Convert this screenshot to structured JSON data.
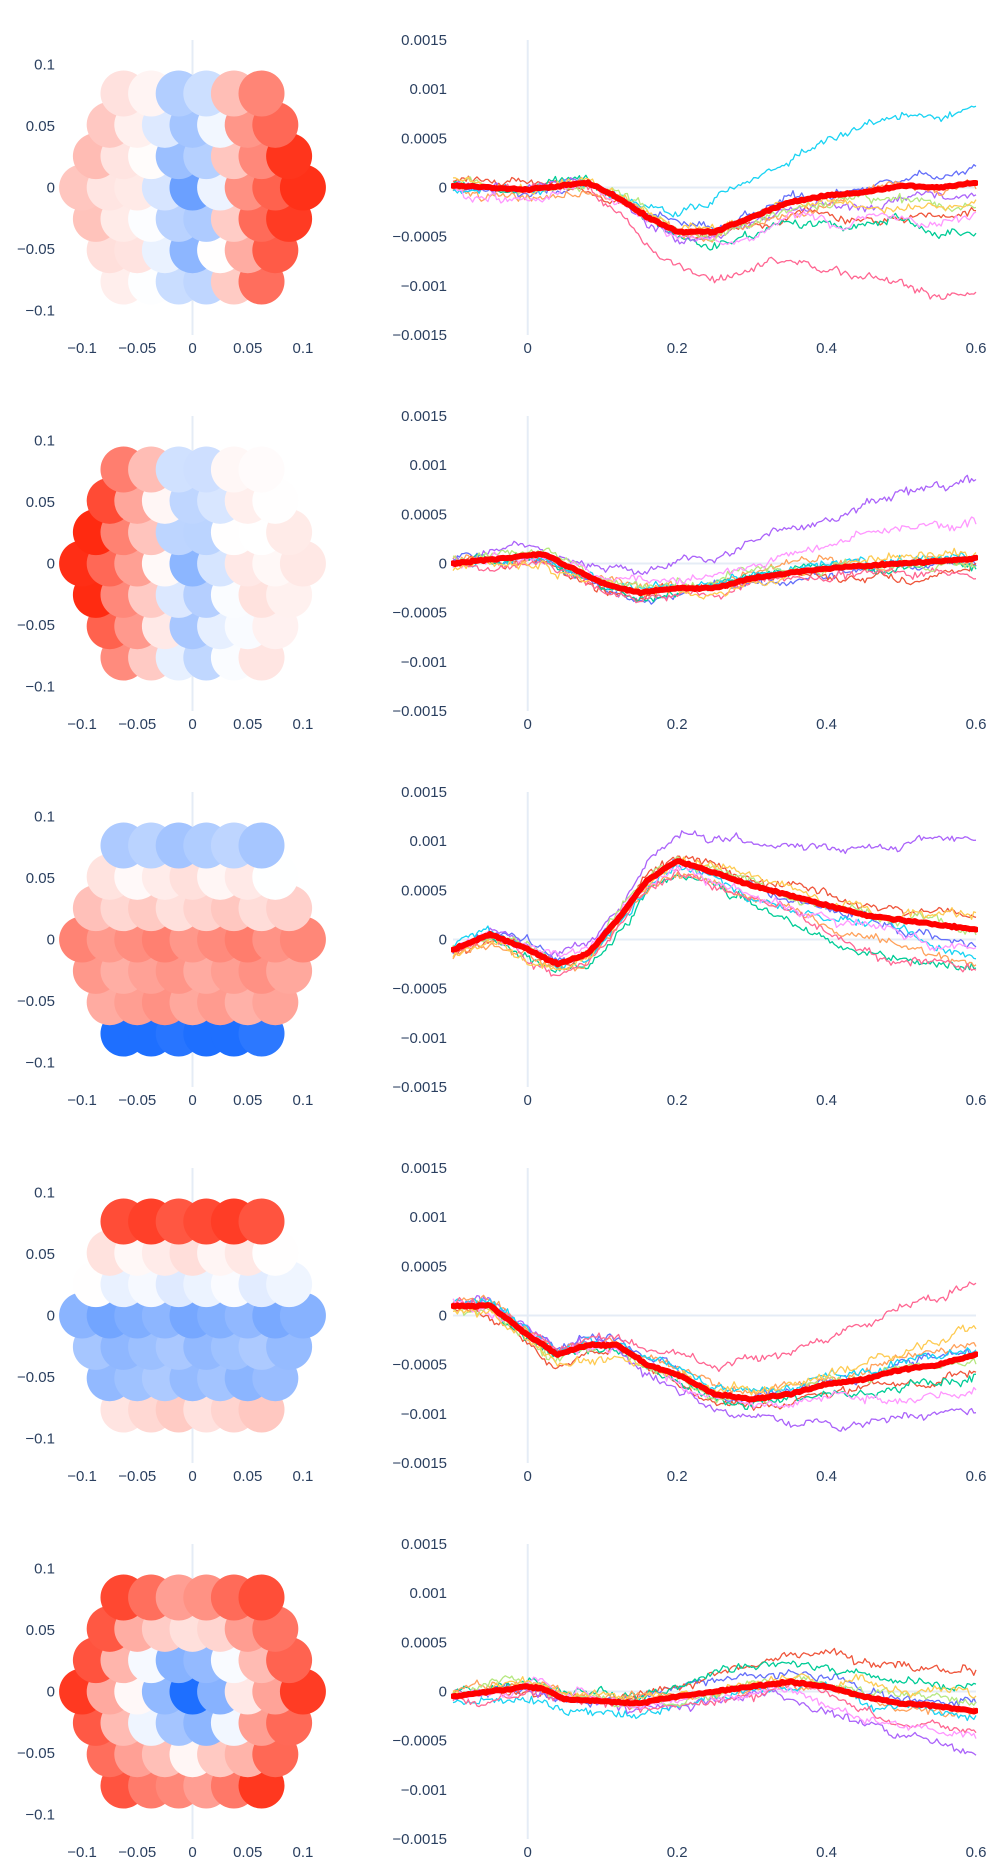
{
  "chart_data": {
    "type": "figure",
    "layout": "5 rows x 2 columns: sensor topography map (left) + multi-channel time series (right)",
    "topomap_axes": {
      "x_ticks": [
        "−0.1",
        "−0.05",
        "0",
        "0.05",
        "0.1"
      ],
      "y_ticks": [
        "0.1",
        "0.05",
        "0",
        "−0.05",
        "−0.1"
      ],
      "xlim": [
        -0.12,
        0.12
      ],
      "ylim": [
        -0.12,
        0.12
      ],
      "colorscale": {
        "low": "#1e6fff",
        "mid": "#ffffff",
        "high": "#ff2a10"
      }
    },
    "timeseries_axes": {
      "x_ticks": [
        "0",
        "0.2",
        "0.4",
        "0.6"
      ],
      "y_ticks": [
        "0.0015",
        "0.001",
        "0.0005",
        "0",
        "−0.0005",
        "−0.001",
        "−0.0015"
      ],
      "xlim": [
        -0.1,
        0.6
      ],
      "ylim": [
        -0.0015,
        0.0015
      ],
      "zero_line": true,
      "vertical_line_at": 0
    },
    "channel_colors": [
      "#636efa",
      "#ef553b",
      "#00cc96",
      "#ab63fa",
      "#ffa15a",
      "#19d3f3",
      "#ff6692",
      "#b6e880",
      "#ff97ff",
      "#fecb52"
    ],
    "mean_color": "#ff0000",
    "panels": [
      {
        "row": 1,
        "topomap": {
          "pattern": "lateral",
          "left": 0.25,
          "right": 1.0,
          "center": -0.6
        },
        "mean": {
          "t": [
            -0.1,
            0.0,
            0.08,
            0.12,
            0.16,
            0.2,
            0.25,
            0.3,
            0.35,
            0.4,
            0.45,
            0.5,
            0.55,
            0.6
          ],
          "v": [
            2e-05,
            -2e-05,
            5e-05,
            -0.0001,
            -0.0003,
            -0.00045,
            -0.00045,
            -0.0003,
            -0.00015,
            -8e-05,
            -5e-05,
            2e-05,
            0.0,
            5e-05
          ]
        },
        "final_values": [
          0.00045,
          -0.0002,
          -0.0003,
          -0.0001,
          0.0001,
          0.0006,
          -0.0008,
          -0.00015,
          -0.0002,
          -0.0001
        ]
      },
      {
        "row": 2,
        "topomap": {
          "pattern": "lateral",
          "left": 1.0,
          "right": 0.1,
          "center": -0.45
        },
        "mean": {
          "t": [
            -0.1,
            0.0,
            0.02,
            0.06,
            0.1,
            0.15,
            0.2,
            0.25,
            0.3,
            0.4,
            0.5,
            0.6
          ],
          "v": [
            0.0,
            8e-05,
            0.0001,
            -5e-05,
            -0.0002,
            -0.0003,
            -0.00025,
            -0.00025,
            -0.00015,
            -5e-05,
            0.0,
            5e-05
          ]
        },
        "final_values": [
          0.0,
          -5e-05,
          0.0001,
          0.0008,
          5e-05,
          0.0001,
          -0.0002,
          0.0001,
          0.0003,
          0.0001
        ]
      },
      {
        "row": 3,
        "topomap": {
          "pattern": "band",
          "top": -0.35,
          "middle": 0.55,
          "bottom": -1.0
        },
        "mean": {
          "t": [
            -0.1,
            -0.05,
            0.0,
            0.04,
            0.08,
            0.12,
            0.16,
            0.2,
            0.25,
            0.3,
            0.35,
            0.4,
            0.45,
            0.5,
            0.55,
            0.6
          ],
          "v": [
            -0.0001,
            5e-05,
            -0.0001,
            -0.00025,
            -0.00015,
            0.0002,
            0.0006,
            0.0008,
            0.00068,
            0.00055,
            0.00045,
            0.00035,
            0.00025,
            0.0002,
            0.00015,
            0.0001
          ]
        },
        "final_values": [
          -0.0001,
          0.0003,
          -0.0002,
          0.0008,
          -0.0001,
          -0.0002,
          -0.0003,
          0.0001,
          -0.0001,
          0.0002
        ]
      },
      {
        "row": 4,
        "topomap": {
          "pattern": "band",
          "top": 0.85,
          "middle": -0.55,
          "bottom": 0.2
        },
        "mean": {
          "t": [
            -0.1,
            -0.05,
            0.0,
            0.04,
            0.08,
            0.12,
            0.16,
            0.2,
            0.25,
            0.3,
            0.35,
            0.4,
            0.45,
            0.5,
            0.55,
            0.6
          ],
          "v": [
            0.0001,
            0.0001,
            -0.0002,
            -0.0004,
            -0.0003,
            -0.0003,
            -0.0005,
            -0.0006,
            -0.0008,
            -0.00085,
            -0.0008,
            -0.0007,
            -0.00065,
            -0.00055,
            -0.0005,
            -0.0004
          ]
        },
        "final_values": [
          -0.0003,
          -0.0005,
          -0.0006,
          -0.0009,
          -0.0003,
          -0.0004,
          0.0005,
          -0.0004,
          -0.0007,
          -0.0002
        ]
      },
      {
        "row": 5,
        "topomap": {
          "pattern": "radial",
          "center": -1.0,
          "edge": 0.9
        },
        "mean": {
          "t": [
            -0.1,
            -0.05,
            0.0,
            0.02,
            0.05,
            0.1,
            0.15,
            0.2,
            0.25,
            0.3,
            0.35,
            0.4,
            0.45,
            0.5,
            0.55,
            0.6
          ],
          "v": [
            -5e-05,
            0.0,
            5e-05,
            3e-05,
            -8e-05,
            -0.0001,
            -0.00012,
            -5e-05,
            0.0,
            5e-05,
            0.0001,
            5e-05,
            -5e-05,
            -0.00012,
            -0.00015,
            -0.0002
          ]
        },
        "final_values": [
          -0.0001,
          0.0002,
          0.0001,
          -0.0007,
          -0.0002,
          -0.0002,
          -0.0004,
          -0.0001,
          -0.0006,
          -0.0001
        ]
      }
    ]
  }
}
